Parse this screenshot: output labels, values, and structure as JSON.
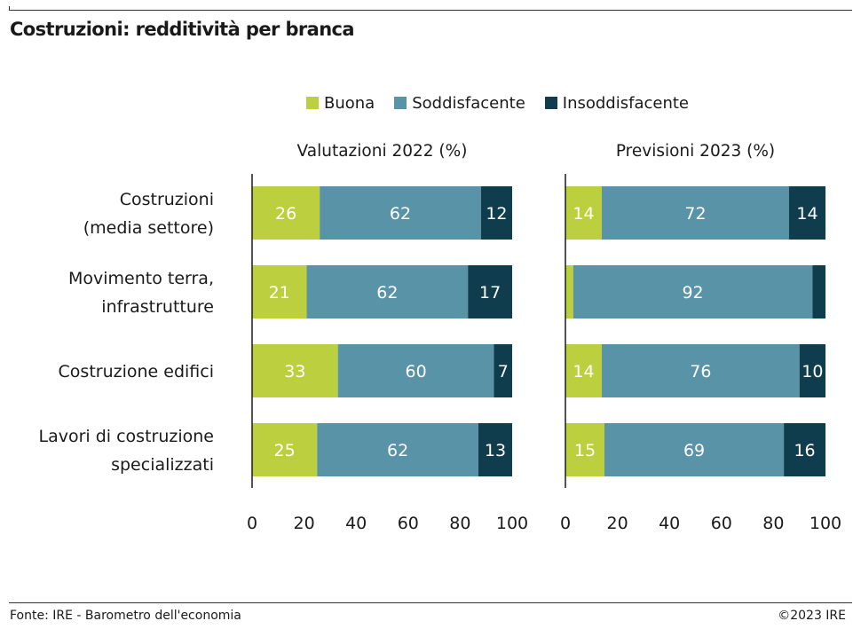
{
  "title": "Costruzioni: redditività per branca",
  "source": "Fonte: IRE - Barometro dell'economia",
  "copyright": "©2023 IRE",
  "colors": {
    "buona": "#bccf3e",
    "soddisfacente": "#5893a7",
    "insoddisfacente": "#0f3d4d"
  },
  "legend": [
    {
      "label": "Buona",
      "color": "#bccf3e"
    },
    {
      "label": "Soddisfacente",
      "color": "#5893a7"
    },
    {
      "label": "Insoddisfacente",
      "color": "#0f3d4d"
    }
  ],
  "chart_data": [
    {
      "type": "bar",
      "orientation": "horizontal",
      "stacked": true,
      "title": "Valutazioni 2022 (%)",
      "categories": [
        [
          "Costruzioni",
          "(media settore)"
        ],
        [
          "Movimento terra,",
          "infrastrutture"
        ],
        [
          "Costruzione edifici"
        ],
        [
          "Lavori di costruzione",
          "specializzati"
        ]
      ],
      "series": [
        {
          "name": "Buona",
          "values": [
            26,
            21,
            33,
            25
          ]
        },
        {
          "name": "Soddisfacente",
          "values": [
            62,
            62,
            60,
            62
          ]
        },
        {
          "name": "Insoddisfacente",
          "values": [
            12,
            17,
            7,
            13
          ]
        }
      ],
      "xlim": [
        0,
        100
      ],
      "xticks": [
        0,
        20,
        40,
        60,
        80,
        100
      ],
      "grid": false,
      "legend_position": "top"
    },
    {
      "type": "bar",
      "orientation": "horizontal",
      "stacked": true,
      "title": "Previsioni 2023 (%)",
      "categories": [
        [
          "Costruzioni",
          "(media settore)"
        ],
        [
          "Movimento terra,",
          "infrastrutture"
        ],
        [
          "Costruzione edifici"
        ],
        [
          "Lavori di costruzione",
          "specializzati"
        ]
      ],
      "series": [
        {
          "name": "Buona",
          "values": [
            14,
            3,
            14,
            15
          ]
        },
        {
          "name": "Soddisfacente",
          "values": [
            72,
            92,
            76,
            69
          ]
        },
        {
          "name": "Insoddisfacente",
          "values": [
            14,
            5,
            10,
            16
          ]
        }
      ],
      "shown_labels": [
        [
          true,
          true,
          true
        ],
        [
          false,
          true,
          false
        ],
        [
          true,
          true,
          true
        ],
        [
          true,
          true,
          true
        ]
      ],
      "xlim": [
        0,
        100
      ],
      "xticks": [
        0,
        20,
        40,
        60,
        80,
        100
      ],
      "grid": false,
      "legend_position": "top"
    }
  ]
}
